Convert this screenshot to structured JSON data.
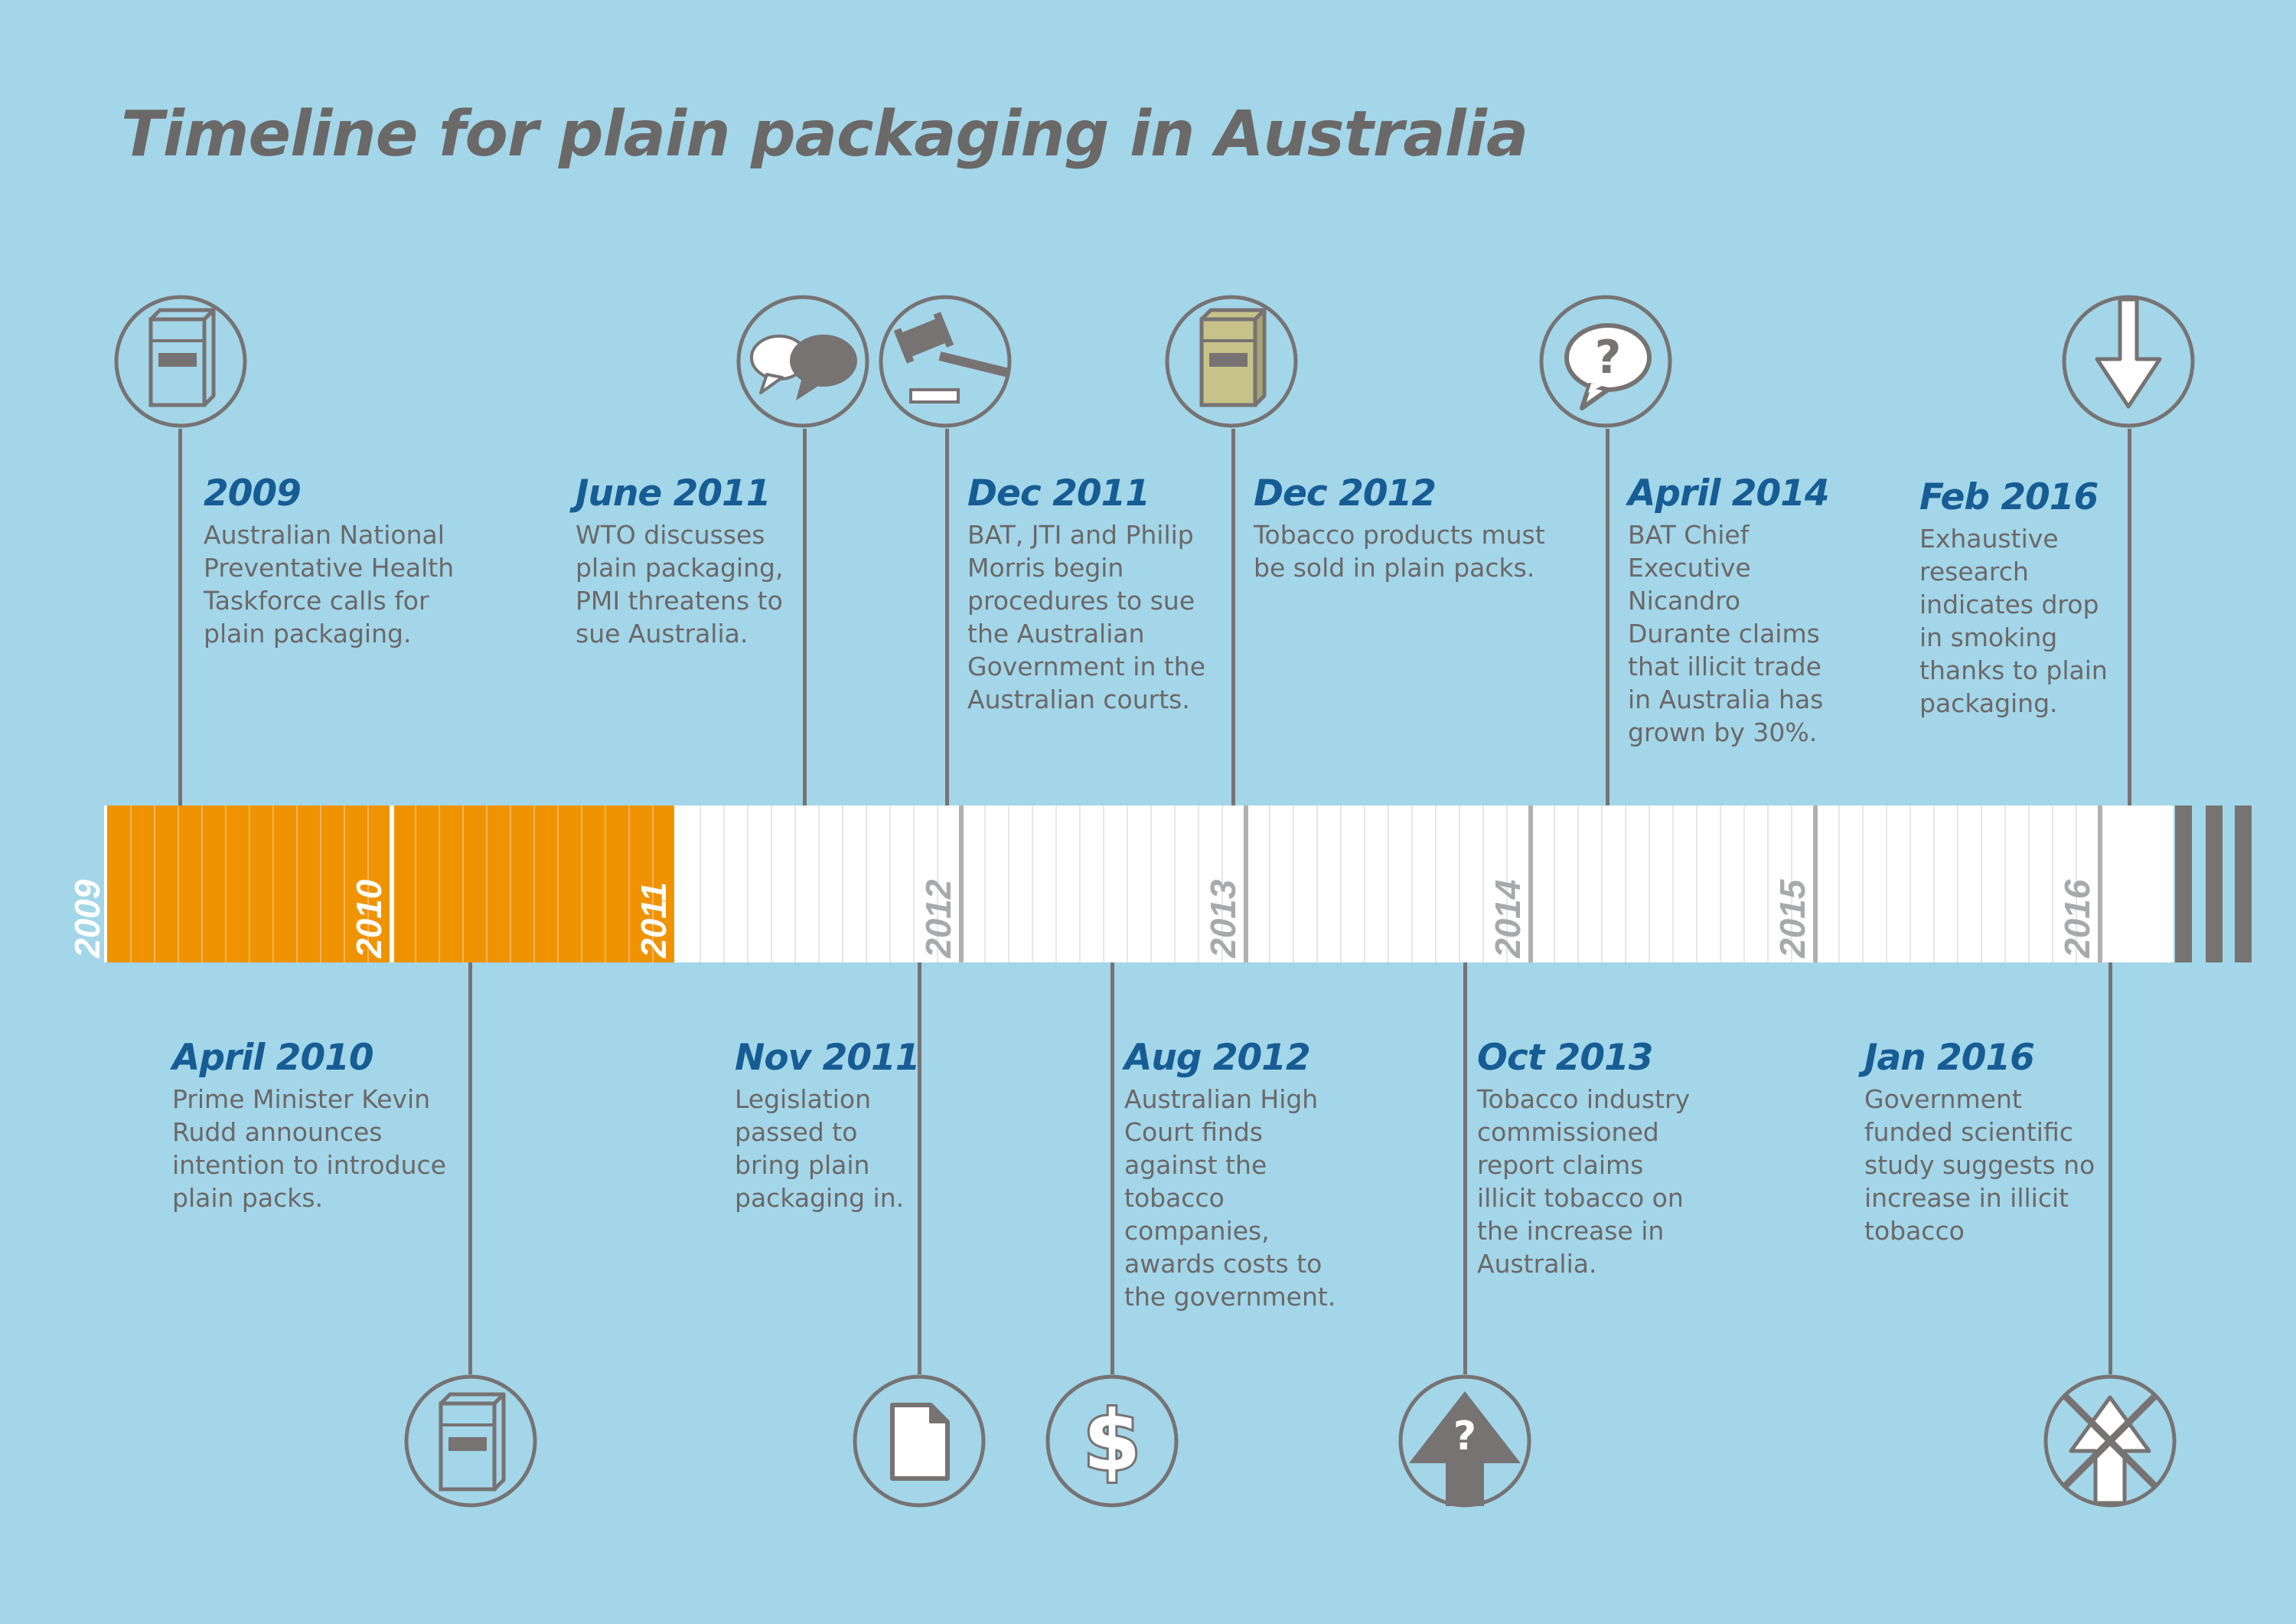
{
  "title": "Timeline for plain packaging in Australia",
  "timeline": {
    "years": [
      "2009",
      "2010",
      "2011",
      "2012",
      "2013",
      "2014",
      "2015",
      "2016"
    ],
    "highlighted_years": [
      "2009",
      "2010"
    ],
    "colors": {
      "background": "#a3d6e8",
      "highlight": "#ef9300",
      "bar": "#ffffff",
      "line": "#777373",
      "date": "#165d95",
      "text": "#6b6868"
    }
  },
  "events_top": [
    {
      "date": "2009",
      "desc": "Australian National Preventative Health Taskforce calls for plain packaging.",
      "icon": "cigarette-pack-icon"
    },
    {
      "date": "June 2011",
      "desc": "WTO discusses plain packaging, PMI threatens to sue Australia.",
      "icon": "speech-bubbles-icon"
    },
    {
      "date": "Dec 2011",
      "desc": "BAT, JTI and Philip Morris begin procedures to sue the Australian Government in the Australian courts.",
      "icon": "gavel-icon"
    },
    {
      "date": "Dec 2012",
      "desc": "Tobacco products must be sold in plain packs.",
      "icon": "plain-pack-icon"
    },
    {
      "date": "April 2014",
      "desc": "BAT Chief Executive Nicandro Durante claims that illicit trade in Australia has grown by 30%.",
      "icon": "question-bubble-icon"
    },
    {
      "date": "Feb 2016",
      "desc": "Exhaustive research indicates drop in smoking thanks to plain packaging.",
      "icon": "arrow-down-icon"
    }
  ],
  "events_bottom": [
    {
      "date": "April 2010",
      "desc": "Prime Minister Kevin Rudd announces intention to introduce plain packs.",
      "icon": "cigarette-pack-icon"
    },
    {
      "date": "Nov 2011",
      "desc": "Legislation passed to bring plain packaging in.",
      "icon": "document-icon"
    },
    {
      "date": "Aug 2012",
      "desc": "Australian High Court finds against the tobacco companies, awards costs to the government.",
      "icon": "dollar-icon"
    },
    {
      "date": "Oct 2013",
      "desc": "Tobacco industry commissioned report claims illicit tobacco on the increase in Australia.",
      "icon": "question-arrow-up-icon"
    },
    {
      "date": "Jan 2016",
      "desc": "Government funded scientific study suggests no increase in illicit tobacco",
      "icon": "crossed-arrow-up-icon"
    }
  ]
}
